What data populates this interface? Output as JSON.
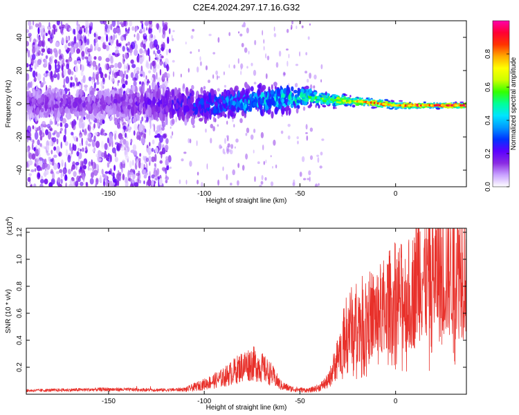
{
  "figure": {
    "title": "C2E4.2024.297.17.16.G32"
  },
  "chart_data": [
    {
      "type": "heatmap",
      "xlabel": "Height of straight line (km)",
      "ylabel": "Frequency (Hz)",
      "xlim": [
        -193,
        37
      ],
      "ylim": [
        -50,
        50
      ],
      "xticks": [
        -150,
        -100,
        -50,
        0
      ],
      "yticks": [
        -40,
        -20,
        0,
        20,
        40
      ],
      "colorbar": {
        "label": "Normalized spectral amplitude",
        "range": [
          0,
          1
        ],
        "ticks": [
          0.0,
          0.2,
          0.4,
          0.6,
          0.8
        ],
        "colors": [
          "#ffffff",
          "#c9a2ff",
          "#8a2be2",
          "#5c00ff",
          "#0033ff",
          "#0099ff",
          "#00e5ff",
          "#00ff99",
          "#33ff00",
          "#ccff00",
          "#ffff00",
          "#ffaa00",
          "#ff3300",
          "#ff0033",
          "#ff00aa"
        ]
      },
      "signal_track": {
        "x": [
          -193,
          -150,
          -120,
          -100,
          -80,
          -60,
          -45,
          -30,
          -15,
          0,
          20,
          37
        ],
        "freq": [
          0,
          0,
          0,
          -1,
          1,
          3,
          4,
          2,
          1,
          -1,
          -1,
          -1
        ],
        "amplitude": [
          0.15,
          0.15,
          0.2,
          0.3,
          0.4,
          0.45,
          0.55,
          0.65,
          0.8,
          0.85,
          0.9,
          0.95
        ],
        "spread_hz": [
          5,
          5,
          6,
          5,
          5,
          5,
          3,
          2,
          1.5,
          1.2,
          1,
          1
        ]
      },
      "noise_region": {
        "x_from": -193,
        "x_to": -118,
        "amplitude": 0.12
      }
    },
    {
      "type": "line",
      "xlabel": "Height of straight line (km)",
      "ylabel": "SNR (10 * v/v)",
      "y_multiplier": "(x10^4)",
      "y_multiplier_base": "(x10",
      "y_multiplier_exp": "4",
      "y_multiplier_close": ")",
      "xlim": [
        -193,
        37
      ],
      "ylim": [
        0,
        12300
      ],
      "xticks": [
        -150,
        -100,
        -50,
        0
      ],
      "yticks": [
        2000,
        4000,
        6000,
        8000,
        10000,
        12000
      ],
      "ytick_labels": [
        "0.2",
        "0.4",
        "0.6",
        "0.8",
        "1.0",
        "1.2"
      ],
      "color": "#e8302a",
      "envelope": {
        "x": [
          -193,
          -150,
          -120,
          -110,
          -100,
          -90,
          -80,
          -75,
          -70,
          -65,
          -60,
          -55,
          -50,
          -45,
          -40,
          -35,
          -30,
          -25,
          -20,
          -15,
          -10,
          -5,
          0,
          5,
          10,
          12,
          15,
          20,
          25,
          30,
          37
        ],
        "y": [
          300,
          400,
          350,
          400,
          900,
          1500,
          2500,
          2800,
          2400,
          1800,
          800,
          500,
          400,
          350,
          600,
          1200,
          3500,
          6000,
          6500,
          7000,
          7200,
          8000,
          8800,
          8600,
          9500,
          11500,
          10200,
          10800,
          11000,
          11400,
          11600
        ]
      }
    }
  ]
}
